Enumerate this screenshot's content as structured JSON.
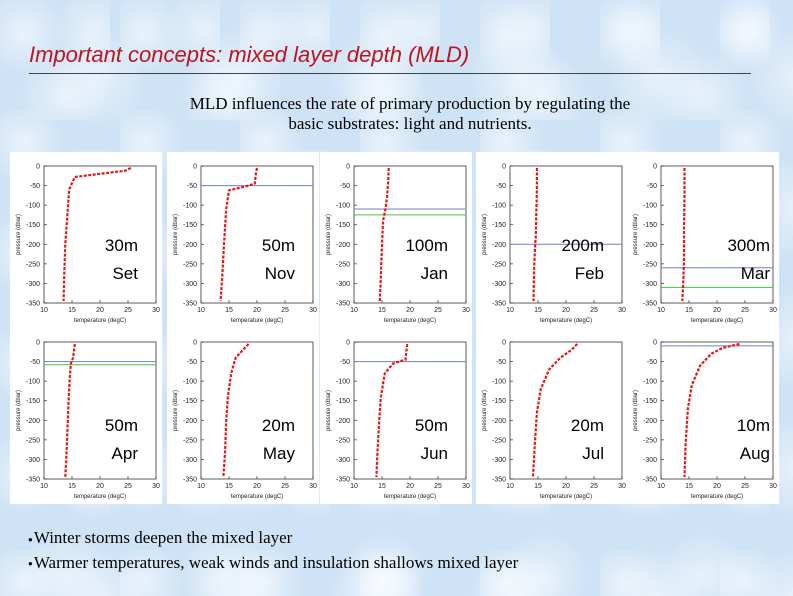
{
  "slide": {
    "title": "Important concepts: mixed layer depth (MLD)",
    "subtitle_line1": "MLD influences the rate of primary production by regulating the",
    "subtitle_line2": "basic substrates: light and nutrients.",
    "bullets": [
      "Winter storms deepen the mixed layer",
      "Warmer temperatures, weak winds and insulation shallows mixed layer"
    ],
    "bullet_glyph": "●"
  },
  "axis_common": {
    "xlabel": "temperature (degC)",
    "ylabel": "pressure (dbar)",
    "y_ticks": [
      "0",
      "-50",
      "-100",
      "-150",
      "-200",
      "-250",
      "-300",
      "-350"
    ],
    "x_ticks": [
      "10",
      "15",
      "20",
      "25",
      "30"
    ],
    "xlim": [
      10,
      30
    ],
    "ylim": [
      -350,
      0
    ]
  },
  "colors": {
    "profile": "#e01818",
    "mld_line_blue": "#6d7fcc",
    "mld_line_green": "#45c045",
    "title": "#c0141c"
  },
  "chart_data": [
    {
      "type": "line",
      "mld_label": "30m",
      "month": "Set",
      "x": [
        10,
        15,
        20,
        25,
        30
      ],
      "series": [
        {
          "name": "",
          "temperature": [
            25.5,
            24.5,
            20,
            15.5,
            14.5,
            14.2,
            13.8,
            13.6,
            13.5
          ],
          "pressure": [
            -5,
            -12,
            -20,
            -28,
            -60,
            -120,
            -200,
            -280,
            -345
          ]
        }
      ],
      "mld_lines": []
    },
    {
      "type": "line",
      "mld_label": "50m",
      "month": "Nov",
      "x": [
        10,
        15,
        20,
        25,
        30
      ],
      "series": [
        {
          "name": "",
          "temperature": [
            20,
            19.8,
            19.6,
            18,
            15,
            14.5,
            14.1,
            13.8,
            13.5
          ],
          "pressure": [
            -5,
            -20,
            -45,
            -52,
            -62,
            -110,
            -200,
            -280,
            -345
          ]
        }
      ],
      "mld_lines": [
        {
          "depth": -50,
          "color": "blue"
        }
      ]
    },
    {
      "type": "line",
      "mld_label": "100m",
      "month": "Jan",
      "x": [
        10,
        15,
        20,
        25,
        30
      ],
      "series": [
        {
          "name": "",
          "temperature": [
            16.2,
            16.1,
            15.9,
            15.6,
            15.2,
            15,
            14.8,
            14.6
          ],
          "pressure": [
            -5,
            -40,
            -80,
            -110,
            -140,
            -200,
            -280,
            -345
          ]
        }
      ],
      "mld_lines": [
        {
          "depth": -110,
          "color": "blue"
        },
        {
          "depth": -125,
          "color": "green"
        }
      ]
    },
    {
      "type": "line",
      "mld_label": "200m",
      "month": "Feb",
      "x": [
        10,
        15,
        20,
        25,
        30
      ],
      "series": [
        {
          "name": "",
          "temperature": [
            14.8,
            14.8,
            14.7,
            14.6,
            14.5,
            14.3,
            14.2
          ],
          "pressure": [
            -5,
            -60,
            -120,
            -180,
            -200,
            -260,
            -345
          ]
        }
      ],
      "mld_lines": [
        {
          "depth": -200,
          "color": "blue"
        }
      ]
    },
    {
      "type": "line",
      "mld_label": "300m",
      "month": "Mar",
      "x": [
        10,
        15,
        20,
        25,
        30
      ],
      "series": [
        {
          "name": "",
          "temperature": [
            14.2,
            14.2,
            14.1,
            14.1,
            14,
            13.9,
            13.8
          ],
          "pressure": [
            -5,
            -80,
            -160,
            -240,
            -290,
            -320,
            -345
          ]
        }
      ],
      "mld_lines": [
        {
          "depth": -260,
          "color": "blue"
        },
        {
          "depth": -310,
          "color": "green"
        }
      ]
    },
    {
      "type": "line",
      "mld_label": "50m",
      "month": "Apr",
      "x": [
        10,
        15,
        20,
        25,
        30
      ],
      "series": [
        {
          "name": "",
          "temperature": [
            15.5,
            15.2,
            14.8,
            14.6,
            14.4,
            14.2,
            14,
            13.8
          ],
          "pressure": [
            -5,
            -40,
            -55,
            -90,
            -150,
            -220,
            -290,
            -345
          ]
        }
      ],
      "mld_lines": [
        {
          "depth": -50,
          "color": "blue"
        },
        {
          "depth": -58,
          "color": "green"
        }
      ]
    },
    {
      "type": "line",
      "mld_label": "20m",
      "month": "May",
      "x": [
        10,
        15,
        20,
        25,
        30
      ],
      "series": [
        {
          "name": "",
          "temperature": [
            18.5,
            17.5,
            16.2,
            15.4,
            14.8,
            14.5,
            14.3,
            14
          ],
          "pressure": [
            -5,
            -20,
            -40,
            -80,
            -140,
            -200,
            -280,
            -345
          ]
        }
      ],
      "mld_lines": []
    },
    {
      "type": "line",
      "mld_label": "50m",
      "month": "Jun",
      "x": [
        10,
        15,
        20,
        25,
        30
      ],
      "series": [
        {
          "name": "",
          "temperature": [
            19.5,
            19.2,
            17,
            15.5,
            14.8,
            14.5,
            14.2,
            14
          ],
          "pressure": [
            -5,
            -45,
            -55,
            -80,
            -140,
            -200,
            -280,
            -345
          ]
        }
      ],
      "mld_lines": [
        {
          "depth": -50,
          "color": "blue"
        }
      ]
    },
    {
      "type": "line",
      "mld_label": "20m",
      "month": "Jul",
      "x": [
        10,
        15,
        20,
        25,
        30
      ],
      "series": [
        {
          "name": "",
          "temperature": [
            22,
            21,
            19,
            17,
            15.5,
            14.8,
            14.4,
            14.1
          ],
          "pressure": [
            -5,
            -20,
            -40,
            -70,
            -120,
            -180,
            -270,
            -345
          ]
        }
      ],
      "mld_lines": []
    },
    {
      "type": "line",
      "mld_label": "10m",
      "month": "Aug",
      "x": [
        10,
        15,
        20,
        25,
        30
      ],
      "series": [
        {
          "name": "",
          "temperature": [
            24,
            21,
            19,
            17,
            15.5,
            14.8,
            14.4,
            14.2
          ],
          "pressure": [
            -5,
            -15,
            -30,
            -60,
            -110,
            -170,
            -260,
            -345
          ]
        }
      ],
      "mld_lines": [
        {
          "depth": -10,
          "color": "blue"
        }
      ]
    }
  ]
}
